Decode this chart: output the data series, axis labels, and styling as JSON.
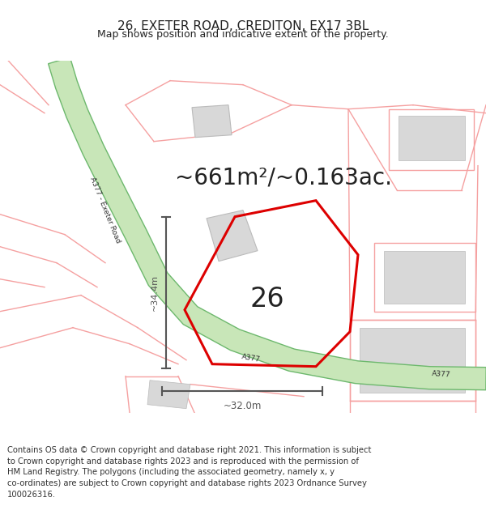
{
  "title_line1": "26, EXETER ROAD, CREDITON, EX17 3BL",
  "title_line2": "Map shows position and indicative extent of the property.",
  "area_text": "~661m²/~0.163ac.",
  "plot_number": "26",
  "road_label_diagonal": "A377 - Exeter Road",
  "road_label_bottom1": "A377",
  "road_label_bottom2": "A377",
  "dim_vertical": "~34.4m",
  "dim_horizontal": "~32.0m",
  "copyright_text": "Contains OS data © Crown copyright and database right 2021. This information is subject\nto Crown copyright and database rights 2023 and is reproduced with the permission of\nHM Land Registry. The polygons (including the associated geometry, namely x, y\nco-ordinates) are subject to Crown copyright and database rights 2023 Ordnance Survey\n100026316.",
  "bg_color": "#ffffff",
  "road_green_fill": "#c8e6b8",
  "road_green_edge": "#6db86d",
  "boundary_pink": "#f5a0a0",
  "plot_red": "#dd0000",
  "building_gray_fill": "#d8d8d8",
  "building_gray_edge": "#bbbbbb",
  "dim_color": "#555555",
  "text_dark": "#222222",
  "title_fontsize": 11,
  "subtitle_fontsize": 9,
  "area_fontsize": 20,
  "copyright_fontsize": 7.2
}
